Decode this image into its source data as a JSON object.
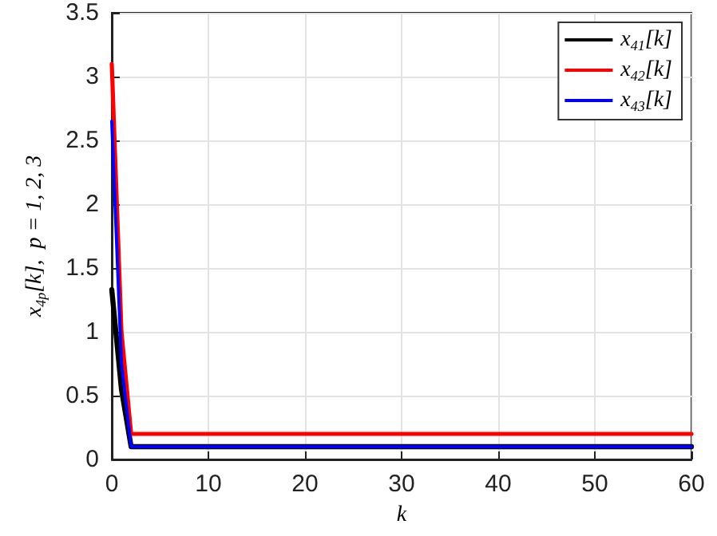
{
  "chart_data": {
    "type": "line",
    "xlabel": "k",
    "ylabel": "x$_{4p}$[k],  p = 1, 2, 3",
    "x": [
      0,
      1,
      2,
      60
    ],
    "series": [
      {
        "name": "x$_{41}$[k]",
        "color": "#000000",
        "values": [
          1.33,
          0.55,
          0.1,
          0.1
        ]
      },
      {
        "name": "x$_{42}$[k]",
        "color": "#ff0000",
        "values": [
          3.1,
          1.0,
          0.2,
          0.2
        ]
      },
      {
        "name": "x$_{43}$[k]",
        "color": "#0000ff",
        "values": [
          2.65,
          0.75,
          0.1,
          0.1
        ]
      }
    ],
    "xlim": [
      0,
      60
    ],
    "xticks": [
      0,
      10,
      20,
      30,
      40,
      50,
      60
    ],
    "ylim": [
      0,
      3.5
    ],
    "yticks": [
      0,
      0.5,
      1,
      1.5,
      2,
      2.5,
      3,
      3.5
    ],
    "grid": true,
    "legend": "top right",
    "marker": "none",
    "line_style": "solid"
  }
}
